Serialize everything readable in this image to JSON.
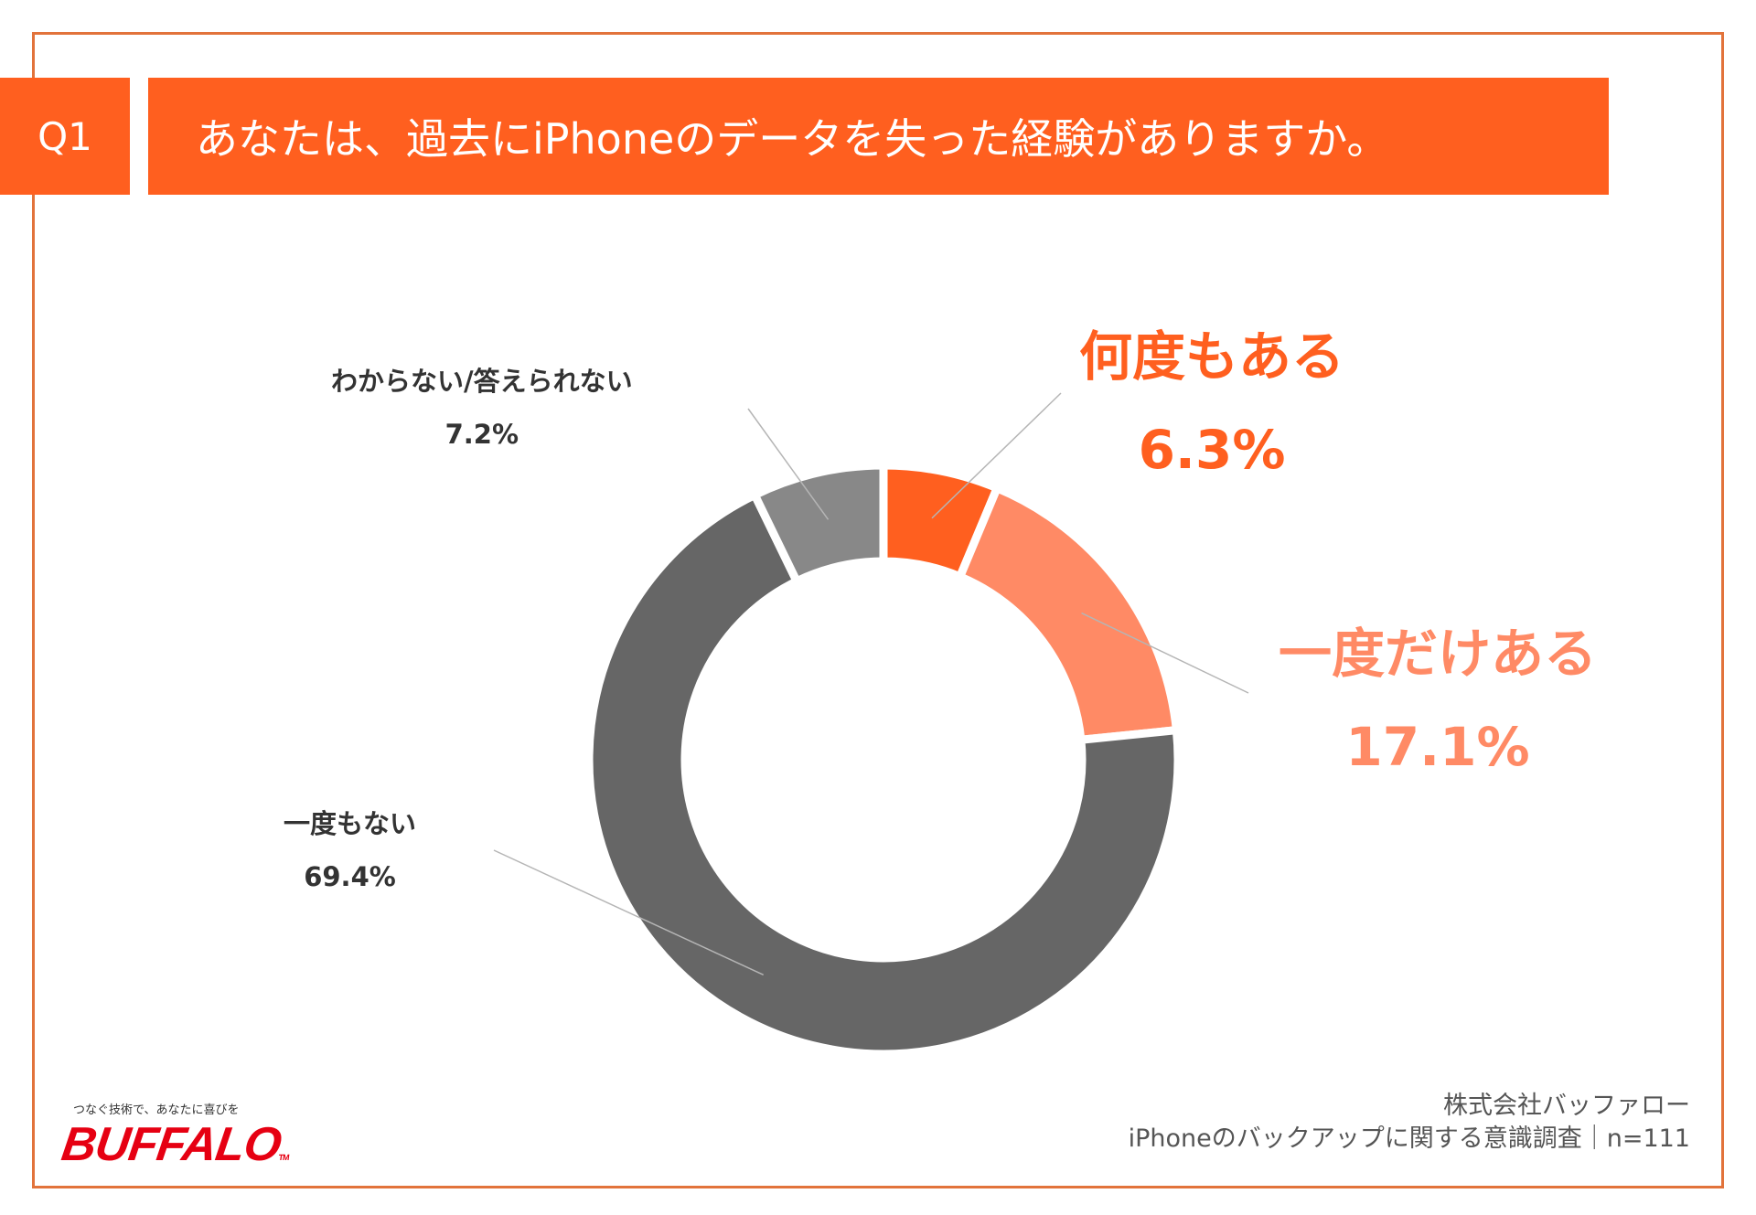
{
  "header": {
    "question_number": "Q1",
    "question_text": "あなたは、過去にiPhoneのデータを失った経験がありますか。"
  },
  "chart_data": {
    "type": "pie",
    "title": "",
    "categories": [
      "何度もある",
      "一度だけある",
      "一度もない",
      "わからない/答えられない"
    ],
    "values": [
      6.3,
      17.1,
      69.4,
      7.2
    ],
    "value_labels": [
      "6.3%",
      "17.1%",
      "69.4%",
      "7.2%"
    ],
    "colors": [
      "#FF5F1F",
      "#FF8A65",
      "#666666",
      "#888888"
    ],
    "label_colors": [
      "#FF5F1F",
      "#FF8A65",
      "#333333",
      "#333333"
    ],
    "legend": "none"
  },
  "footer": {
    "company": "株式会社バッファロー",
    "survey": "iPhoneのバックアップに関する意識調査｜n=111",
    "logo_tagline": "つなぐ技術で、あなたに喜びを",
    "logo_text": "BUFFALO",
    "logo_tm": "TM"
  }
}
